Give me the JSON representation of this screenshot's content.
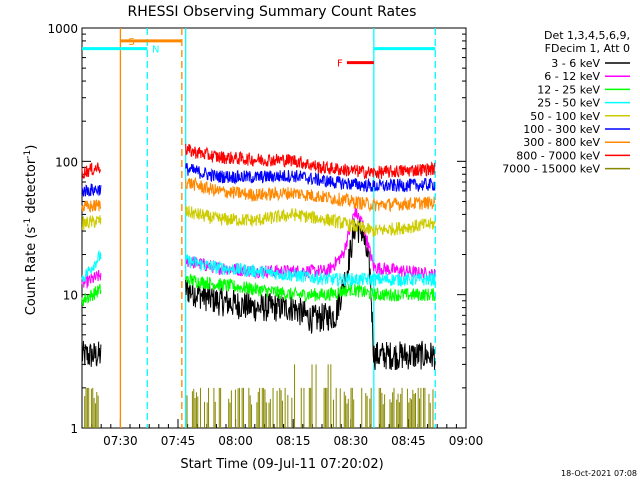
{
  "chart_data": {
    "type": "line",
    "title": "RHESSI Observing Summary Count Rates",
    "xlabel": "Start Time (09-Jul-11 07:20:02)",
    "ylabel_main": "Count Rate (s",
    "ylabel_sup1": "-1",
    "ylabel_mid": " detector",
    "ylabel_sup2": "-1",
    "ylabel_end": ")",
    "footer": "18-Oct-2021 07:08",
    "y_scale": "log",
    "ylim": [
      1,
      1000
    ],
    "xlim_minutes": [
      0,
      100
    ],
    "x_ticks": [
      {
        "label": "07:30",
        "min": 10
      },
      {
        "label": "07:45",
        "min": 25
      },
      {
        "label": "08:00",
        "min": 40
      },
      {
        "label": "08:15",
        "min": 55
      },
      {
        "label": "08:30",
        "min": 70
      },
      {
        "label": "08:45",
        "min": 85
      },
      {
        "label": "09:00",
        "min": 100
      }
    ],
    "y_ticks": [
      {
        "label": "1",
        "v": 1
      },
      {
        "label": "10",
        "v": 10
      },
      {
        "label": "100",
        "v": 100
      },
      {
        "label": "1000",
        "v": 1000
      }
    ],
    "legend_header": [
      "Det 1,3,4,5,6,9,",
      "FDecim 1, Att 0"
    ],
    "legend_placement": "right",
    "flags": [
      {
        "label": "S",
        "color": "#ff8800",
        "start": 10,
        "end": 26,
        "level": 800
      },
      {
        "label": "N",
        "color": "#00ffff",
        "start": 0,
        "end": 17,
        "level": 700
      },
      {
        "label": "F",
        "color": "#ff0000",
        "start": 69,
        "end": 76,
        "level": 550
      },
      {
        "label": "",
        "color": "#00ffff",
        "start": 76,
        "end": 92,
        "level": 700
      }
    ],
    "vlines": [
      {
        "min": 10,
        "color": "#ff8800",
        "dashed": false
      },
      {
        "min": 17,
        "color": "#00ffff",
        "dashed": true
      },
      {
        "min": 26,
        "color": "#ff8800",
        "dashed": true
      },
      {
        "min": 27,
        "color": "#00ffff",
        "dashed": false
      },
      {
        "min": 76,
        "color": "#00ffff",
        "dashed": false
      },
      {
        "min": 92,
        "color": "#00ffff",
        "dashed": true
      }
    ],
    "segments": [
      [
        0,
        5
      ],
      [
        27,
        92
      ]
    ],
    "series": [
      {
        "name": "3 - 6 keV",
        "color": "#000000",
        "pts": [
          [
            0,
            3.5
          ],
          [
            5,
            3.5
          ],
          [
            27,
            11
          ],
          [
            35,
            9
          ],
          [
            45,
            8
          ],
          [
            55,
            8
          ],
          [
            60,
            6.5
          ],
          [
            66,
            7
          ],
          [
            69,
            15
          ],
          [
            71,
            32
          ],
          [
            73,
            30
          ],
          [
            75,
            15
          ],
          [
            76,
            3.5
          ],
          [
            92,
            3.5
          ]
        ]
      },
      {
        "name": "6 - 12 keV",
        "color": "#ff00ff",
        "pts": [
          [
            0,
            12
          ],
          [
            5,
            14
          ],
          [
            27,
            18
          ],
          [
            35,
            16
          ],
          [
            45,
            15
          ],
          [
            55,
            15
          ],
          [
            64,
            15
          ],
          [
            68,
            20
          ],
          [
            71,
            42
          ],
          [
            73,
            35
          ],
          [
            76,
            16
          ],
          [
            92,
            14
          ]
        ]
      },
      {
        "name": "12 - 25 keV",
        "color": "#00ff00",
        "pts": [
          [
            0,
            9
          ],
          [
            5,
            11
          ],
          [
            27,
            13
          ],
          [
            35,
            12
          ],
          [
            45,
            11
          ],
          [
            55,
            10
          ],
          [
            64,
            10
          ],
          [
            70,
            11
          ],
          [
            76,
            10
          ],
          [
            92,
            10
          ]
        ]
      },
      {
        "name": "25 - 50 keV",
        "color": "#00ffff",
        "pts": [
          [
            0,
            13
          ],
          [
            5,
            20
          ],
          [
            27,
            18
          ],
          [
            35,
            16
          ],
          [
            45,
            15
          ],
          [
            55,
            14
          ],
          [
            65,
            13
          ],
          [
            76,
            13
          ],
          [
            92,
            13
          ]
        ]
      },
      {
        "name": "50 - 100 keV",
        "color": "#cccc00",
        "pts": [
          [
            0,
            34
          ],
          [
            5,
            36
          ],
          [
            27,
            42
          ],
          [
            35,
            37
          ],
          [
            45,
            36
          ],
          [
            55,
            40
          ],
          [
            65,
            36
          ],
          [
            76,
            30
          ],
          [
            92,
            34
          ]
        ]
      },
      {
        "name": "100 - 300 keV",
        "color": "#0000ff",
        "pts": [
          [
            0,
            60
          ],
          [
            5,
            62
          ],
          [
            27,
            88
          ],
          [
            35,
            77
          ],
          [
            45,
            76
          ],
          [
            55,
            78
          ],
          [
            65,
            70
          ],
          [
            76,
            65
          ],
          [
            92,
            67
          ]
        ]
      },
      {
        "name": "300 - 800 keV",
        "color": "#ff8800",
        "pts": [
          [
            0,
            45
          ],
          [
            5,
            47
          ],
          [
            27,
            70
          ],
          [
            35,
            60
          ],
          [
            45,
            56
          ],
          [
            55,
            58
          ],
          [
            65,
            53
          ],
          [
            76,
            47
          ],
          [
            92,
            49
          ]
        ]
      },
      {
        "name": "800 - 7000 keV",
        "color": "#ff0000",
        "pts": [
          [
            0,
            82
          ],
          [
            5,
            92
          ],
          [
            27,
            122
          ],
          [
            35,
            108
          ],
          [
            45,
            103
          ],
          [
            55,
            102
          ],
          [
            62,
            90
          ],
          [
            76,
            82
          ],
          [
            92,
            88
          ]
        ]
      },
      {
        "name": "7000 - 15000 keV",
        "color": "#888800",
        "pts": []
      }
    ]
  }
}
